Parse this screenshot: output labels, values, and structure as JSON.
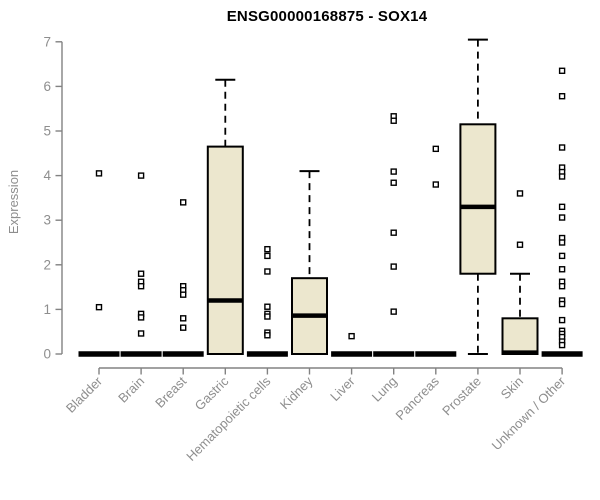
{
  "chart_data": {
    "type": "boxplot",
    "title": "ENSG00000168875 - SOX14",
    "ylabel": "Expression",
    "xlabel": "",
    "ylim": [
      0,
      7.1
    ],
    "yticks": [
      0,
      1,
      2,
      3,
      4,
      5,
      6,
      7
    ],
    "grid": "off",
    "categories": [
      "Bladder",
      "Brain",
      "Breast",
      "Gastric",
      "Hematopoietic cells",
      "Kidney",
      "Liver",
      "Lung",
      "Pancreas",
      "Prostate",
      "Skin",
      "Unknown / Other"
    ],
    "boxes": [
      {
        "category": "Bladder",
        "q1": 0,
        "median": 0,
        "q3": 0,
        "whisker_low": 0,
        "whisker_high": 0,
        "outliers": [
          4.05,
          1.05
        ]
      },
      {
        "category": "Brain",
        "q1": 0,
        "median": 0,
        "q3": 0,
        "whisker_low": 0,
        "whisker_high": 0,
        "outliers": [
          4.0,
          1.8,
          1.62,
          1.52,
          0.9,
          0.82,
          0.46
        ]
      },
      {
        "category": "Breast",
        "q1": 0,
        "median": 0,
        "q3": 0,
        "whisker_low": 0,
        "whisker_high": 0,
        "outliers": [
          3.4,
          1.52,
          1.43,
          1.33,
          0.8,
          0.59
        ]
      },
      {
        "category": "Gastric",
        "q1": 0,
        "median": 1.2,
        "q3": 4.65,
        "whisker_low": 0,
        "whisker_high": 6.15,
        "outliers": []
      },
      {
        "category": "Hematopoietic cells",
        "q1": 0,
        "median": 0,
        "q3": 0,
        "whisker_low": 0,
        "whisker_high": 0,
        "outliers": [
          2.35,
          2.2,
          1.85,
          1.06,
          0.9,
          0.84,
          0.48,
          0.42
        ]
      },
      {
        "category": "Kidney",
        "q1": 0,
        "median": 0.86,
        "q3": 1.7,
        "whisker_low": 0,
        "whisker_high": 4.1,
        "outliers": []
      },
      {
        "category": "Liver",
        "q1": 0,
        "median": 0,
        "q3": 0,
        "whisker_low": 0,
        "whisker_high": 0,
        "outliers": [
          0.4
        ]
      },
      {
        "category": "Lung",
        "q1": 0,
        "median": 0,
        "q3": 0,
        "whisker_low": 0,
        "whisker_high": 0,
        "outliers": [
          5.33,
          5.23,
          4.09,
          3.84,
          2.72,
          1.96,
          0.95
        ]
      },
      {
        "category": "Pancreas",
        "q1": 0,
        "median": 0,
        "q3": 0,
        "whisker_low": 0,
        "whisker_high": 0,
        "outliers": [
          4.6,
          3.8
        ]
      },
      {
        "category": "Prostate",
        "q1": 1.8,
        "median": 3.3,
        "q3": 5.15,
        "whisker_low": 0,
        "whisker_high": 7.05,
        "outliers": []
      },
      {
        "category": "Skin",
        "q1": 0,
        "median": 0.03,
        "q3": 0.8,
        "whisker_low": 0,
        "whisker_high": 1.8,
        "outliers": [
          3.6,
          2.45
        ]
      },
      {
        "category": "Unknown / Other",
        "q1": 0,
        "median": 0,
        "q3": 0,
        "whisker_low": 0,
        "whisker_high": 0,
        "outliers": [
          6.35,
          5.78,
          4.63,
          4.18,
          4.08,
          3.98,
          3.3,
          3.06,
          2.6,
          2.5,
          2.2,
          1.9,
          1.62,
          1.52,
          1.2,
          1.12,
          0.76,
          0.52,
          0.45,
          0.38,
          0.28,
          0.2
        ]
      }
    ],
    "colors": {
      "box_fill": "#ece7ce",
      "box_border": "#000000",
      "median": "#000000",
      "axis_line": "#828282",
      "tick_label": "#8e8e8e",
      "title": "#000000",
      "background": "#ffffff"
    },
    "legend": "none"
  }
}
